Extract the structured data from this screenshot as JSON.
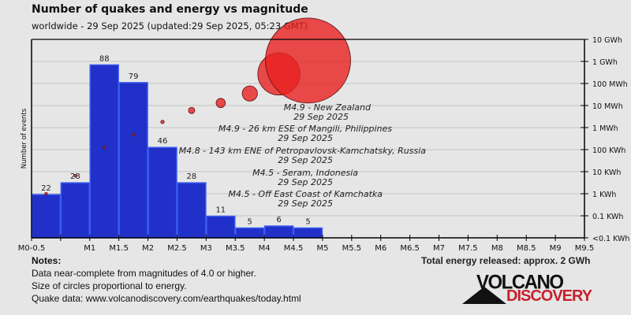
{
  "title": "Number of quakes and energy vs magnitude",
  "subtitle": "worldwide - 29 Sep 2025 (updated:29 Sep 2025, 05:23 GMT)",
  "chart_data": {
    "type": "bar",
    "ylabel_left": "Number of events",
    "categories": [
      "M0-0.5",
      "M0.5-1",
      "M1-1.5",
      "M1.5-2",
      "M2-2.5",
      "M2.5-3",
      "M3-3.5",
      "M3.5-4",
      "M4-4.5",
      "M4.5-5",
      "M5-5.5",
      "M5.5-6",
      "M6-6.5",
      "M6.5-7",
      "M7-7.5",
      "M7.5-8",
      "M8-8.5",
      "M8.5-9",
      "M9-9.5"
    ],
    "x_tick_labels": [
      "M0-0.5",
      "",
      "M1",
      "M1.5",
      "M2",
      "M2.5",
      "M3",
      "M3.5",
      "M4",
      "M4.5",
      "M5",
      "M5.5",
      "M6",
      "M6.5",
      "M7",
      "M7.5",
      "M8",
      "M8.5",
      "M9",
      "M9.5"
    ],
    "series": [
      {
        "type": "bar",
        "axis": "left",
        "values": [
          22,
          28,
          88,
          79,
          46,
          28,
          11,
          5,
          6,
          5,
          0,
          0,
          0,
          0,
          0,
          0,
          0,
          0,
          0
        ]
      },
      {
        "type": "bubble",
        "axis": "right",
        "unit": "Wh",
        "values": [
          1000,
          6600,
          126000,
          480000,
          1800000,
          6000000,
          13000000,
          35000000,
          270000000,
          1100000000,
          null,
          null,
          null,
          null,
          null,
          null,
          null,
          null,
          null
        ]
      }
    ],
    "ylim_left": [
      0,
      101
    ],
    "right_axis": {
      "scale": "log",
      "ticks": [
        "<0.1 KWh",
        "0.1 KWh",
        "1 KWh",
        "10 KWh",
        "100 KWh",
        "1 MWh",
        "10 MWh",
        "100 MWh",
        "1 GWh",
        "10 GWh"
      ]
    },
    "grid": true,
    "colors": {
      "bar": "#2030c8",
      "bar_edge": "#3c5cf0",
      "bubble": "#e82020",
      "bubble_edge": "#5a1010"
    },
    "annotations": [
      {
        "line1": "M4.9 - New Zealand",
        "line2": "29 Sep 2025"
      },
      {
        "line1": "M4.9 - 26 km ESE of Mangili, Philippines",
        "line2": "29 Sep 2025"
      },
      {
        "line1": "M4.8 - 143 km ENE of Petropavlovsk-Kamchatsky, Russia",
        "line2": "29 Sep 2025"
      },
      {
        "line1": "M4.5 - Seram, Indonesia",
        "line2": "29 Sep 2025"
      },
      {
        "line1": "M4.5 - Off East Coast of Kamchatka",
        "line2": "29 Sep 2025"
      }
    ]
  },
  "notes": {
    "heading": "Notes:",
    "lines": [
      "Data near-complete from magnitudes of 4.0 or higher.",
      "Size of circles proportional to energy.",
      "Quake data: www.volcanodiscovery.com/earthquakes/today.html"
    ]
  },
  "total_energy": "Total energy released: approx. 2 GWh",
  "logo": {
    "word1": "VOLCANO",
    "word2": "DISCOVERY"
  }
}
